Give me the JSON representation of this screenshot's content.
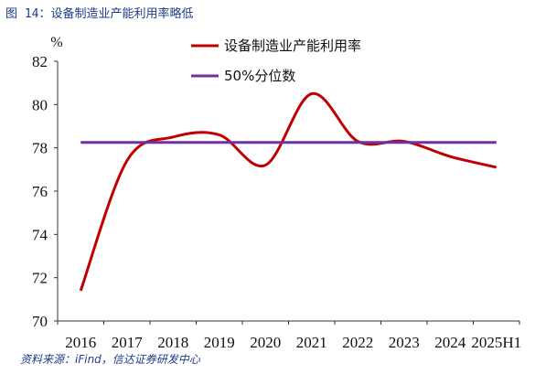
{
  "figure": {
    "title": "图 14：设备制造业产能利用率略低",
    "source": "资料来源：iFind，信达证券研发中心"
  },
  "chart_data": {
    "type": "line",
    "ylabel": "%",
    "xlabel": "",
    "ylim": [
      70,
      82
    ],
    "yticks": [
      70,
      72,
      74,
      76,
      78,
      80,
      82
    ],
    "categories": [
      "2016",
      "2017",
      "2018",
      "2019",
      "2020",
      "2021",
      "2022",
      "2023",
      "2024",
      "2025H1"
    ],
    "grid": false,
    "legend_position": "top",
    "series": [
      {
        "name": "设备制造业产能利用率",
        "color": "#c00000",
        "style": "smooth",
        "x": [
          0,
          1,
          2,
          3,
          4,
          5,
          6,
          7,
          8,
          9
        ],
        "values": [
          71.4,
          77.4,
          78.5,
          78.6,
          77.2,
          80.5,
          78.3,
          78.3,
          77.6,
          77.1
        ]
      },
      {
        "name": "50%分位数",
        "color": "#7030a0",
        "style": "flat",
        "x": [
          0,
          9
        ],
        "values": [
          78.25,
          78.25
        ]
      }
    ]
  }
}
